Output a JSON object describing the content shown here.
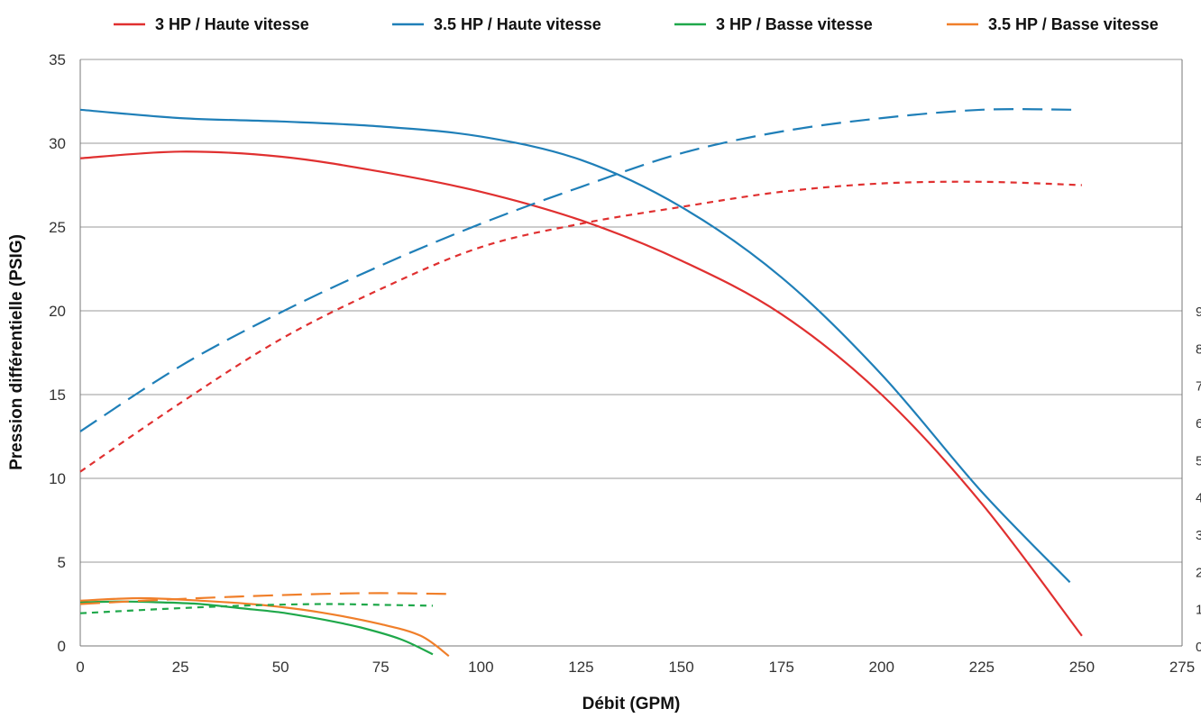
{
  "chart_data": {
    "type": "line",
    "title": "",
    "xlabel": "Débit (GPM)",
    "ylabel": "Pression différentielle (PSIG)",
    "xlim": [
      0,
      275
    ],
    "ylim": [
      0,
      35
    ],
    "x_ticks": [
      "0",
      "25",
      "50",
      "75",
      "100",
      "125",
      "150",
      "175",
      "200",
      "225",
      "250",
      "275"
    ],
    "y_ticks": [
      "0",
      "5",
      "10",
      "15",
      "20",
      "25",
      "30",
      "35"
    ],
    "right_axis_ticks_partial": [
      "0",
      "1",
      "2",
      "3",
      "4",
      "5",
      "6",
      "7",
      "8",
      "9"
    ],
    "grid": "horizontal",
    "legend_position": "top",
    "legend": [
      {
        "label": "3 HP / Haute vitesse",
        "color": "#e03030"
      },
      {
        "label": "3.5 HP / Haute vitesse",
        "color": "#1f7fb8"
      },
      {
        "label": "3 HP / Basse vitesse",
        "color": "#1fa84a"
      },
      {
        "label": "3.5 HP / Basse vitesse",
        "color": "#f07f2a"
      }
    ],
    "series": [
      {
        "name": "3 HP / Haute vitesse",
        "style": "solid",
        "color": "#e03030",
        "points": [
          [
            0,
            29.1
          ],
          [
            25,
            29.5
          ],
          [
            50,
            29.2
          ],
          [
            75,
            28.3
          ],
          [
            100,
            27.1
          ],
          [
            125,
            25.4
          ],
          [
            150,
            23.0
          ],
          [
            175,
            19.8
          ],
          [
            200,
            15.0
          ],
          [
            225,
            8.5
          ],
          [
            250,
            0.6
          ]
        ]
      },
      {
        "name": "3.5 HP / Haute vitesse",
        "style": "solid",
        "color": "#1f7fb8",
        "points": [
          [
            0,
            32.0
          ],
          [
            25,
            31.5
          ],
          [
            50,
            31.3
          ],
          [
            75,
            31.0
          ],
          [
            100,
            30.4
          ],
          [
            125,
            29.0
          ],
          [
            150,
            26.2
          ],
          [
            175,
            22.0
          ],
          [
            200,
            16.2
          ],
          [
            225,
            9.2
          ],
          [
            247,
            3.8
          ]
        ]
      },
      {
        "name": "3 HP / Basse vitesse",
        "style": "solid",
        "color": "#1fa84a",
        "points": [
          [
            0,
            2.6
          ],
          [
            10,
            2.65
          ],
          [
            20,
            2.6
          ],
          [
            30,
            2.5
          ],
          [
            40,
            2.25
          ],
          [
            50,
            2.0
          ],
          [
            60,
            1.6
          ],
          [
            70,
            1.1
          ],
          [
            80,
            0.4
          ],
          [
            88,
            -0.5
          ]
        ]
      },
      {
        "name": "3.5 HP / Basse vitesse",
        "style": "solid",
        "color": "#f07f2a",
        "points": [
          [
            0,
            2.7
          ],
          [
            15,
            2.85
          ],
          [
            30,
            2.7
          ],
          [
            45,
            2.45
          ],
          [
            60,
            2.0
          ],
          [
            75,
            1.3
          ],
          [
            85,
            0.6
          ],
          [
            92,
            -0.6
          ]
        ]
      },
      {
        "name": "",
        "style": "dashed-short",
        "color": "#e03030",
        "points": [
          [
            0,
            10.4
          ],
          [
            25,
            14.5
          ],
          [
            50,
            18.3
          ],
          [
            75,
            21.3
          ],
          [
            100,
            23.8
          ],
          [
            125,
            25.2
          ],
          [
            150,
            26.2
          ],
          [
            175,
            27.1
          ],
          [
            200,
            27.6
          ],
          [
            225,
            27.7
          ],
          [
            250,
            27.5
          ]
        ]
      },
      {
        "name": "",
        "style": "dashed-long",
        "color": "#1f7fb8",
        "points": [
          [
            0,
            12.8
          ],
          [
            25,
            16.7
          ],
          [
            50,
            19.9
          ],
          [
            75,
            22.7
          ],
          [
            100,
            25.2
          ],
          [
            125,
            27.4
          ],
          [
            150,
            29.4
          ],
          [
            175,
            30.7
          ],
          [
            200,
            31.5
          ],
          [
            225,
            32.0
          ],
          [
            248,
            32.0
          ]
        ]
      },
      {
        "name": "",
        "style": "dashed-short",
        "color": "#1fa84a",
        "points": [
          [
            0,
            1.95
          ],
          [
            20,
            2.2
          ],
          [
            40,
            2.4
          ],
          [
            60,
            2.5
          ],
          [
            75,
            2.45
          ],
          [
            88,
            2.4
          ]
        ]
      },
      {
        "name": "",
        "style": "dashed-long",
        "color": "#f07f2a",
        "points": [
          [
            0,
            2.5
          ],
          [
            20,
            2.75
          ],
          [
            40,
            2.95
          ],
          [
            60,
            3.1
          ],
          [
            75,
            3.15
          ],
          [
            92,
            3.1
          ]
        ]
      }
    ]
  }
}
